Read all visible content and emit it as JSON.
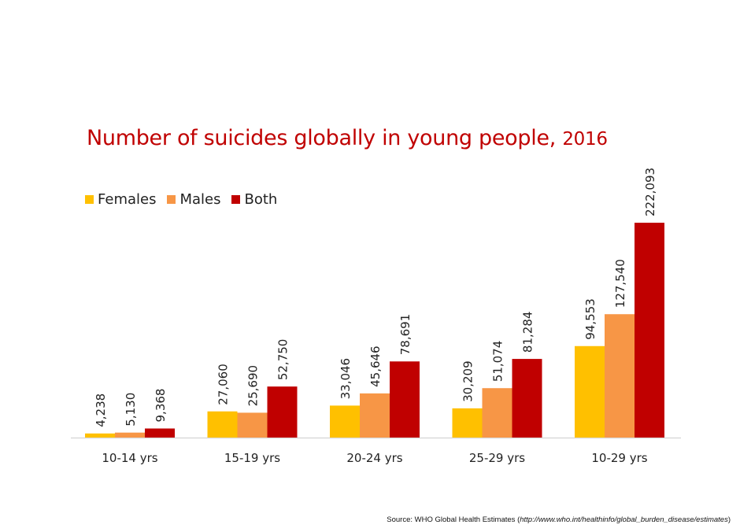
{
  "chart_data": {
    "type": "bar",
    "title": "Number of suicides globally in young people,",
    "title_year": "2016",
    "categories": [
      "10-14 yrs",
      "15-19 yrs",
      "20-24 yrs",
      "25-29 yrs",
      "10-29 yrs"
    ],
    "series": [
      {
        "name": "Females",
        "color": "#ffc000",
        "values": [
          4238,
          27060,
          33046,
          30209,
          94553
        ],
        "labels": [
          "4,238",
          "27,060",
          "33,046",
          "30,209",
          "94,553"
        ]
      },
      {
        "name": "Males",
        "color": "#f79646",
        "values": [
          5130,
          25690,
          45646,
          51074,
          127540
        ],
        "labels": [
          "5,130",
          "25,690",
          "45,646",
          "51,074",
          "127,540"
        ]
      },
      {
        "name": "Both",
        "color": "#c00000",
        "values": [
          9368,
          52750,
          78691,
          81284,
          222093
        ],
        "labels": [
          "9,368",
          "52,750",
          "78,691",
          "81,284",
          "222,093"
        ]
      }
    ],
    "xlabel": "",
    "ylabel": "",
    "ylim": [
      0,
      222093
    ],
    "grid": false,
    "legend_position": "top-left"
  },
  "source": {
    "prefix": "Source: WHO Global Health Estimates (",
    "url": "http://www.who.int/healthinfo/global_burden_disease/estimates",
    "suffix": ")"
  }
}
